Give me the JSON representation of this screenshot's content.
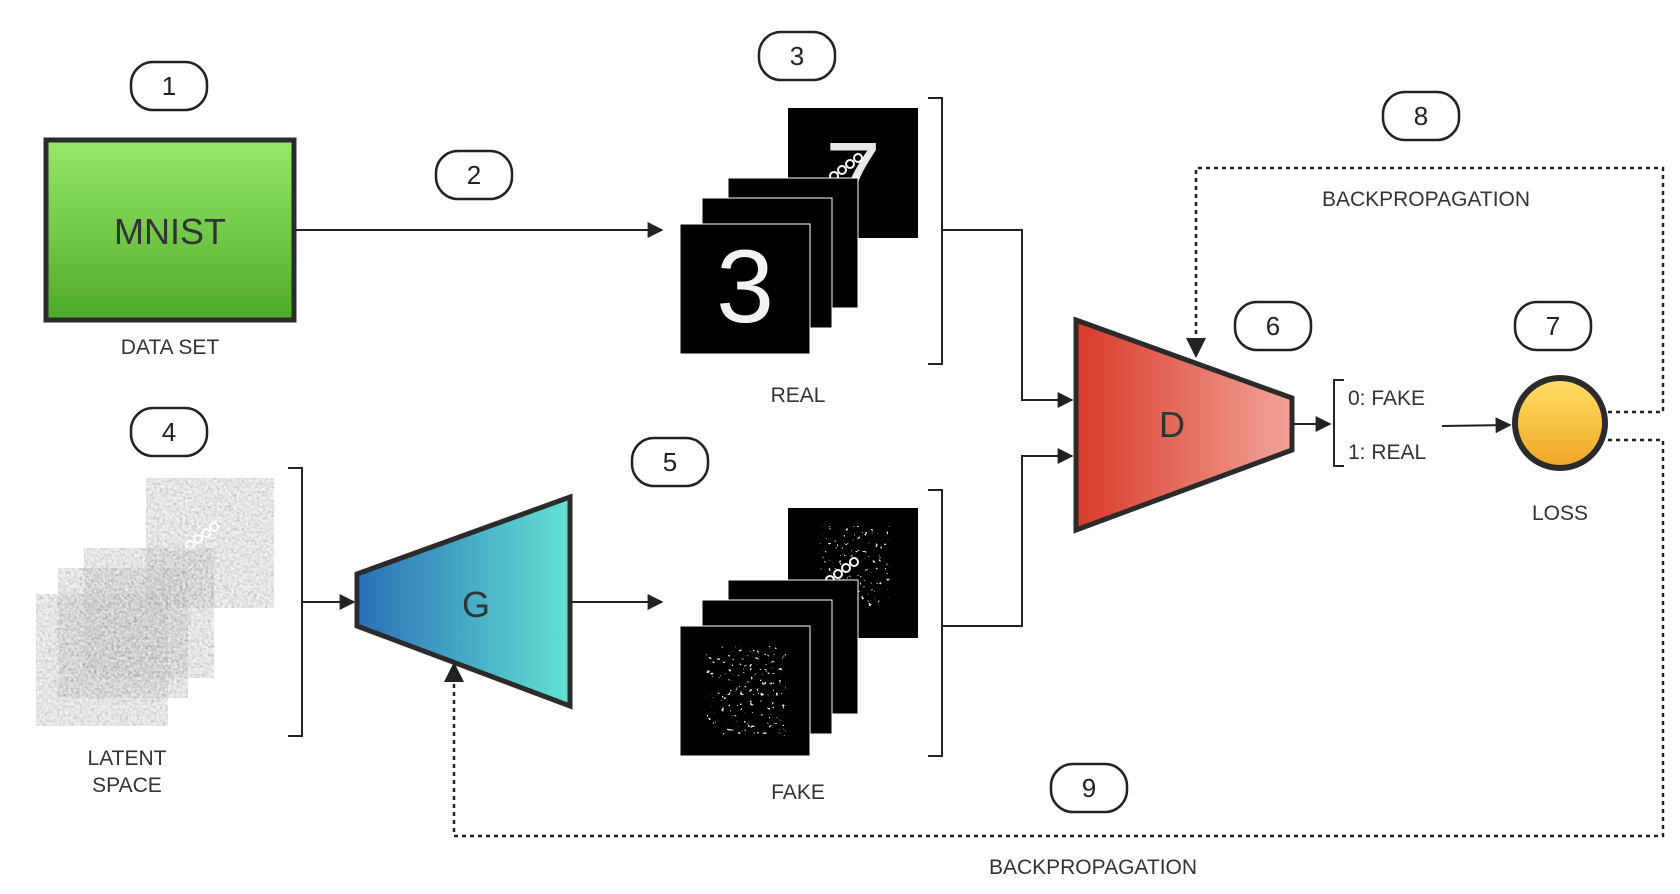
{
  "steps": [
    "1",
    "2",
    "3",
    "4",
    "5",
    "6",
    "7",
    "8",
    "9"
  ],
  "labels": {
    "dataset_box": "MNIST",
    "dataset": "DATA SET",
    "real": "REAL",
    "latent_line1": "LATENT",
    "latent_line2": "SPACE",
    "generator": "G",
    "fake": "FAKE",
    "discriminator": "D",
    "out_fake": "0: FAKE",
    "out_real": "1: REAL",
    "loss": "LOSS",
    "backprop_top": "BACKPROPAGATION",
    "backprop_bottom": "BACKPROPAGATION"
  },
  "colors": {
    "mnist_fill_top": "#97e86a",
    "mnist_fill_bottom": "#4faa2a",
    "generator_left": "#2a6fb8",
    "generator_right": "#62e2d2",
    "discriminator_left": "#d83a28",
    "discriminator_right": "#f2a49a",
    "loss_top": "#ffe066",
    "loss_bottom": "#f0a526",
    "outline": "#2b2b2b"
  }
}
